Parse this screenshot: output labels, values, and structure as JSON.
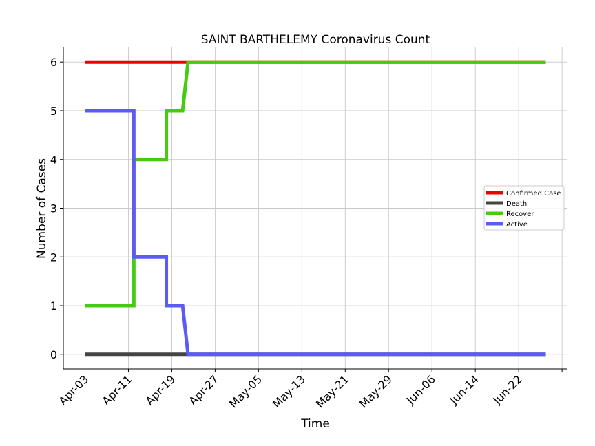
{
  "chart_data": {
    "type": "line",
    "title": "SAINT BARTHELEMY Coronavirus Count",
    "xlabel": "Time",
    "ylabel": "Number of Cases",
    "x_tick_labels": [
      "Apr-03",
      "Apr-11",
      "Apr-19",
      "Apr-27",
      "May-05",
      "May-13",
      "May-21",
      "May-29",
      "Jun-06",
      "Jun-14",
      "Jun-22"
    ],
    "y_ticks": [
      0,
      1,
      2,
      3,
      4,
      5,
      6
    ],
    "xlim": [
      "2020-03-30",
      "2020-07-01"
    ],
    "ylim": [
      -0.3,
      6.3
    ],
    "grid": true,
    "legend_position": "center-right",
    "series": [
      {
        "name": "Confirmed Case",
        "color": "#ee0000",
        "points": [
          [
            "2020-04-03",
            6
          ],
          [
            "2020-06-27",
            6
          ]
        ]
      },
      {
        "name": "Death",
        "color": "#444444",
        "points": [
          [
            "2020-04-03",
            0
          ],
          [
            "2020-06-27",
            0
          ]
        ]
      },
      {
        "name": "Recover",
        "color": "#44cc11",
        "points": [
          [
            "2020-04-03",
            1
          ],
          [
            "2020-04-12",
            1
          ],
          [
            "2020-04-12",
            4
          ],
          [
            "2020-04-18",
            4
          ],
          [
            "2020-04-18",
            5
          ],
          [
            "2020-04-21",
            5
          ],
          [
            "2020-04-22",
            6
          ],
          [
            "2020-06-27",
            6
          ]
        ]
      },
      {
        "name": "Active",
        "color": "#5c5cf5",
        "points": [
          [
            "2020-04-03",
            5
          ],
          [
            "2020-04-12",
            5
          ],
          [
            "2020-04-12",
            2
          ],
          [
            "2020-04-18",
            2
          ],
          [
            "2020-04-18",
            1
          ],
          [
            "2020-04-21",
            1
          ],
          [
            "2020-04-22",
            0
          ],
          [
            "2020-06-27",
            0
          ]
        ]
      }
    ]
  }
}
